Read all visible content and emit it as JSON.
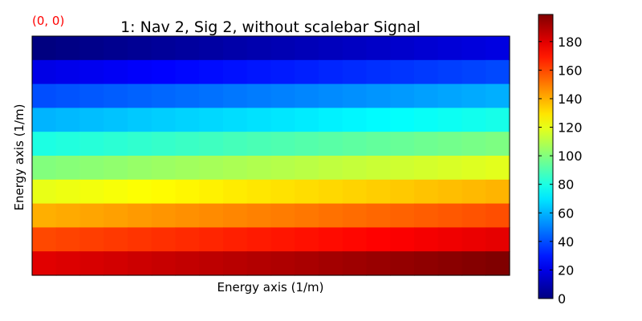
{
  "chart_data": {
    "type": "heatmap",
    "title": "1: Nav 2, Sig 2, without scalebar Signal",
    "corner_label": "(0, 0)",
    "corner_label_color": "#ff0000",
    "xlabel": "Energy axis (1/m)",
    "ylabel": "Energy axis (1/m)",
    "colormap": "jet",
    "clim": [
      0,
      199
    ],
    "colorbar_ticks": [
      0,
      20,
      40,
      60,
      80,
      100,
      120,
      140,
      160,
      180
    ],
    "colorbar_tick_labels": [
      "0",
      "20",
      "40",
      "60",
      "80",
      "100",
      "120",
      "140",
      "160",
      "180"
    ],
    "grid": false,
    "n_rows": 10,
    "n_cols": 20,
    "value_formula": "value = 20 * row_index + col_index",
    "axis_ticks_visible": false
  }
}
